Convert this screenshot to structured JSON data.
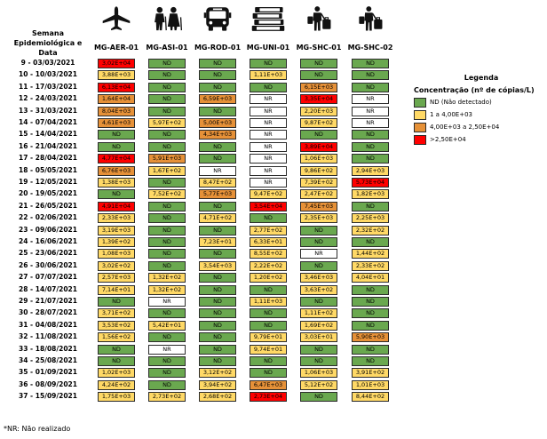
{
  "chart_data": {
    "type": "table",
    "title": "Legenda",
    "row_header": "Semana Epidemiológica e Data",
    "legend_subtitle": "Concentração (nº de cópias/L)",
    "columns": [
      "MG-AER-01",
      "MG-ASI-01",
      "MG-ROD-01",
      "MG-UNI-01",
      "MG-SHC-01",
      "MG-SHC-02"
    ],
    "column_icons": [
      "airplane-icon",
      "elderly-couple-icon",
      "bus-icon",
      "books-icon",
      "traveler-with-luggage-icon",
      "traveler-with-luggage-icon"
    ],
    "rows": [
      {
        "label": "9 - 03/03/2021",
        "values": [
          "3,02E+04",
          "ND",
          "ND",
          "ND",
          "ND",
          "ND"
        ]
      },
      {
        "label": "10 - 10/03/2021",
        "values": [
          "3,88E+03",
          "ND",
          "ND",
          "1,11E+03",
          "ND",
          "ND"
        ]
      },
      {
        "label": "11 - 17/03/2021",
        "values": [
          "6,13E+04",
          "ND",
          "ND",
          "ND",
          "6,15E+03",
          "ND"
        ]
      },
      {
        "label": "12 - 24/03/2021",
        "values": [
          "1,64E+04",
          "ND",
          "6,59E+03",
          "NR",
          "3,35E+04",
          "NR"
        ]
      },
      {
        "label": "13 - 31/03/2021",
        "values": [
          "8,04E+03",
          "ND",
          "ND",
          "NR",
          "2,20E+03",
          "NR"
        ]
      },
      {
        "label": "14 - 07/04/2021",
        "values": [
          "4,61E+03",
          "5,97E+02",
          "5,00E+03",
          "NR",
          "9,87E+02",
          "NR"
        ]
      },
      {
        "label": "15 - 14/04/2021",
        "values": [
          "ND",
          "ND",
          "4,34E+03",
          "NR",
          "ND",
          "ND"
        ]
      },
      {
        "label": "16 - 21/04/2021",
        "values": [
          "ND",
          "ND",
          "ND",
          "NR",
          "3,89E+04",
          "ND"
        ]
      },
      {
        "label": "17 - 28/04/2021",
        "values": [
          "4,77E+04",
          "5,91E+03",
          "ND",
          "NR",
          "1,06E+03",
          "ND"
        ]
      },
      {
        "label": "18 - 05/05/2021",
        "values": [
          "6,76E+03",
          "1,67E+02",
          "NR",
          "NR",
          "9,86E+02",
          "2,94E+03"
        ]
      },
      {
        "label": "19 - 12/05/2021",
        "values": [
          "1,38E+03",
          "ND",
          "8,47E+02",
          "NR",
          "7,39E+02",
          "5,73E+04"
        ]
      },
      {
        "label": "20 - 19/05/2021",
        "values": [
          "ND",
          "7,52E+02",
          "5,77E+03",
          "9,47E+02",
          "2,47E+02",
          "1,82E+03"
        ]
      },
      {
        "label": "21 - 26/05/2021",
        "values": [
          "4,91E+04",
          "ND",
          "ND",
          "3,54E+04",
          "7,45E+03",
          "ND"
        ]
      },
      {
        "label": "22 - 02/06/2021",
        "values": [
          "2,33E+03",
          "ND",
          "4,71E+02",
          "ND",
          "2,35E+03",
          "2,25E+03"
        ]
      },
      {
        "label": "23 - 09/06/2021",
        "values": [
          "3,19E+03",
          "ND",
          "ND",
          "2,77E+02",
          "ND",
          "2,32E+02"
        ]
      },
      {
        "label": "24 - 16/06/2021",
        "values": [
          "1,39E+02",
          "ND",
          "7,23E+01",
          "6,33E+01",
          "ND",
          "ND"
        ]
      },
      {
        "label": "25 - 23/06/2021",
        "values": [
          "1,08E+03",
          "ND",
          "ND",
          "8,55E+02",
          "NR",
          "1,44E+02"
        ]
      },
      {
        "label": "26 - 30/06/2021",
        "values": [
          "3,02E+02",
          "ND",
          "3,54E+03",
          "2,22E+02",
          "ND",
          "2,33E+02"
        ]
      },
      {
        "label": "27 - 07/07/2021",
        "values": [
          "2,57E+03",
          "1,32E+02",
          "ND",
          "1,20E+02",
          "3,46E+03",
          "4,04E+01"
        ]
      },
      {
        "label": "28 - 14/07/2021",
        "values": [
          "7,14E+01",
          "1,32E+02",
          "ND",
          "ND",
          "3,63E+02",
          "ND"
        ]
      },
      {
        "label": "29 - 21/07/2021",
        "values": [
          "ND",
          "NR",
          "ND",
          "1,11E+03",
          "ND",
          "ND"
        ]
      },
      {
        "label": "30 - 28/07/2021",
        "values": [
          "3,71E+02",
          "ND",
          "ND",
          "ND",
          "1,11E+02",
          "ND"
        ]
      },
      {
        "label": "31 - 04/08/2021",
        "values": [
          "3,53E+02",
          "5,42E+01",
          "ND",
          "ND",
          "1,69E+02",
          "ND"
        ]
      },
      {
        "label": "32 - 11/08/2021",
        "values": [
          "1,56E+02",
          "ND",
          "ND",
          "9,79E+01",
          "3,03E+01",
          "5,90E+03"
        ]
      },
      {
        "label": "33 - 18/08/2021",
        "values": [
          "ND",
          "NR",
          "ND",
          "9,74E+01",
          "ND",
          "ND"
        ]
      },
      {
        "label": "34 - 25/08/2021",
        "values": [
          "ND",
          "ND",
          "ND",
          "ND",
          "ND",
          "ND"
        ]
      },
      {
        "label": "35 - 01/09/2021",
        "values": [
          "1,02E+03",
          "ND",
          "3,12E+02",
          "ND",
          "1,06E+03",
          "3,91E+02"
        ]
      },
      {
        "label": "36 - 08/09/2021",
        "values": [
          "4,24E+02",
          "ND",
          "3,94E+02",
          "6,47E+03",
          "5,12E+02",
          "1,01E+03"
        ]
      },
      {
        "label": "37 - 15/09/2021",
        "values": [
          "1,75E+03",
          "2,73E+02",
          "2,68E+02",
          "2,73E+04",
          "ND",
          "8,44E+02"
        ]
      }
    ],
    "legend": [
      {
        "label": "ND (Não detectado)",
        "color": "#6aa84f"
      },
      {
        "label": "1 a 4,00E+03",
        "color": "#ffd966"
      },
      {
        "label": "4,00E+03 a 2,50E+04",
        "color": "#e69138"
      },
      {
        "label": ">2,50E+04",
        "color": "#ff0000"
      }
    ],
    "nr_color": "#ffffff",
    "footnote": "*NR: Não realizado"
  }
}
